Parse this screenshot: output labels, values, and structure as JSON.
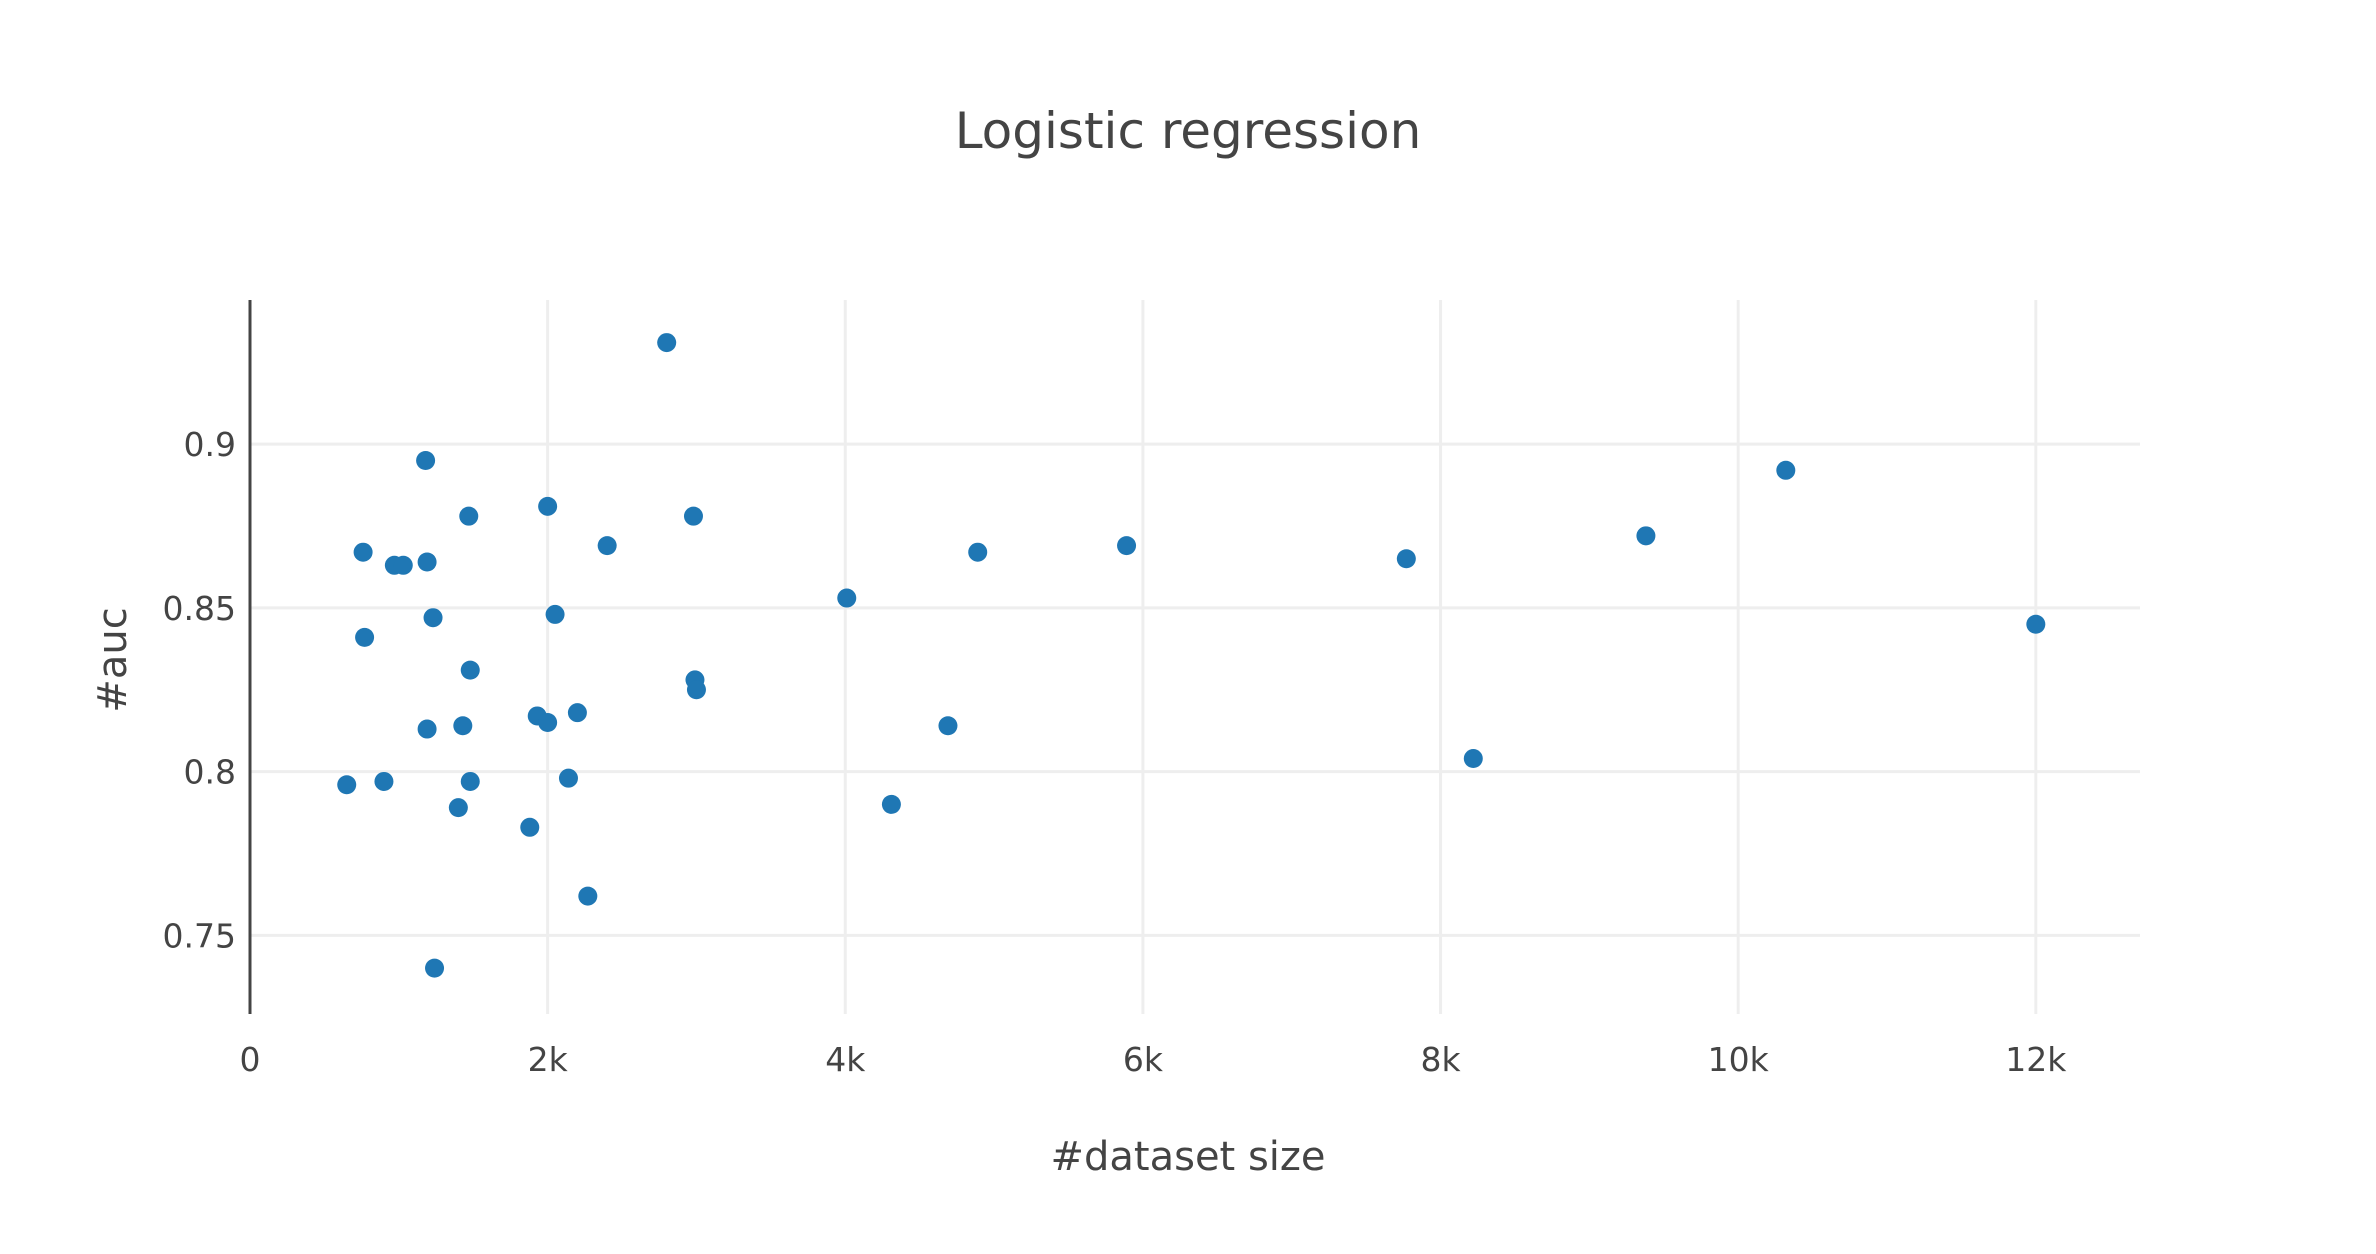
{
  "chart_data": {
    "type": "scatter",
    "title": "Logistic regression",
    "xlabel": "#dataset size",
    "ylabel": "#auc",
    "xlim": [
      0,
      12700
    ],
    "ylim": [
      0.726,
      0.944
    ],
    "x_ticks": [
      {
        "value": 0,
        "label": "0"
      },
      {
        "value": 2000,
        "label": "2k"
      },
      {
        "value": 4000,
        "label": "4k"
      },
      {
        "value": 6000,
        "label": "6k"
      },
      {
        "value": 8000,
        "label": "8k"
      },
      {
        "value": 10000,
        "label": "10k"
      },
      {
        "value": 12000,
        "label": "12k"
      }
    ],
    "y_ticks": [
      {
        "value": 0.75,
        "label": "0.75"
      },
      {
        "value": 0.8,
        "label": "0.8"
      },
      {
        "value": 0.85,
        "label": "0.85"
      },
      {
        "value": 0.9,
        "label": "0.9"
      }
    ],
    "grid": true,
    "marker_color": "#1f77b4",
    "series": [
      {
        "x": [
          650,
          760,
          770,
          900,
          970,
          1030,
          1180,
          1190,
          1190,
          1230,
          1240,
          1400,
          1430,
          1470,
          1480,
          1480,
          1880,
          1930,
          2000,
          2000,
          2050,
          2140,
          2200,
          2270,
          2400,
          2800,
          2980,
          2990,
          3000,
          4010,
          4310,
          4690,
          4890,
          5890,
          7770,
          8220,
          9380,
          10320,
          12000
        ],
        "y": [
          0.796,
          0.867,
          0.841,
          0.797,
          0.863,
          0.863,
          0.895,
          0.864,
          0.813,
          0.847,
          0.74,
          0.789,
          0.814,
          0.878,
          0.831,
          0.797,
          0.783,
          0.817,
          0.881,
          0.815,
          0.848,
          0.798,
          0.818,
          0.762,
          0.869,
          0.931,
          0.878,
          0.828,
          0.825,
          0.853,
          0.79,
          0.814,
          0.867,
          0.869,
          0.865,
          0.804,
          0.872,
          0.892,
          0.845
        ]
      }
    ]
  }
}
